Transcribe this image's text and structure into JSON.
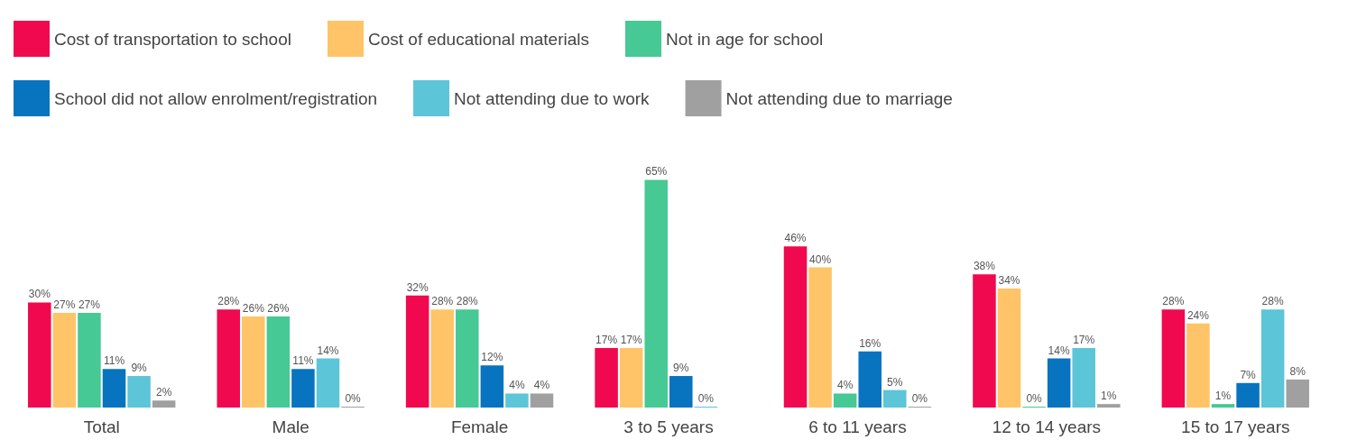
{
  "chart_data": {
    "type": "bar",
    "categories": [
      "Total",
      "Male",
      "Female",
      "3 to 5 years",
      "6 to 11 years",
      "12 to 14 years",
      "15 to 17 years"
    ],
    "legend": "top left",
    "series": [
      {
        "name": "Cost of transportation to school",
        "color": "#f0094e",
        "values": [
          30,
          28,
          32,
          17,
          46,
          38,
          28
        ],
        "value_labels": [
          "30%",
          "28%",
          "32%",
          "17%",
          "46%",
          "38%",
          "28%"
        ]
      },
      {
        "name": "Cost of educational materials",
        "color": "#fec467",
        "values": [
          27,
          26,
          28,
          17,
          40,
          34,
          24
        ],
        "value_labels": [
          "27%",
          "26%",
          "28%",
          "17%",
          "40%",
          "34%",
          "24%"
        ]
      },
      {
        "name": "Not in age for school",
        "color": "#46c994",
        "values": [
          27,
          26,
          28,
          65,
          4,
          0,
          1
        ],
        "value_labels": [
          "27%",
          "26%",
          "28%",
          "65%",
          "4%",
          "0%",
          "1%"
        ]
      },
      {
        "name": "School did not allow enrolment/registration",
        "color": "#0873bf",
        "values": [
          11,
          11,
          12,
          9,
          16,
          14,
          7
        ],
        "value_labels": [
          "11%",
          "11%",
          "12%",
          "9%",
          "16%",
          "14%",
          "7%"
        ]
      },
      {
        "name": "Not attending due to work",
        "color": "#5cc5d7",
        "values": [
          9,
          14,
          4,
          0,
          5,
          17,
          28
        ],
        "value_labels": [
          "9%",
          "14%",
          "4%",
          "0%",
          "5%",
          "17%",
          "28%"
        ]
      },
      {
        "name": "Not attending due to marriage",
        "color": "#a0a0a0",
        "values": [
          2,
          0,
          4,
          null,
          0,
          1,
          8
        ],
        "value_labels": [
          "2%",
          "0%",
          "4%",
          null,
          "0%",
          "1%",
          "8%"
        ]
      }
    ]
  }
}
